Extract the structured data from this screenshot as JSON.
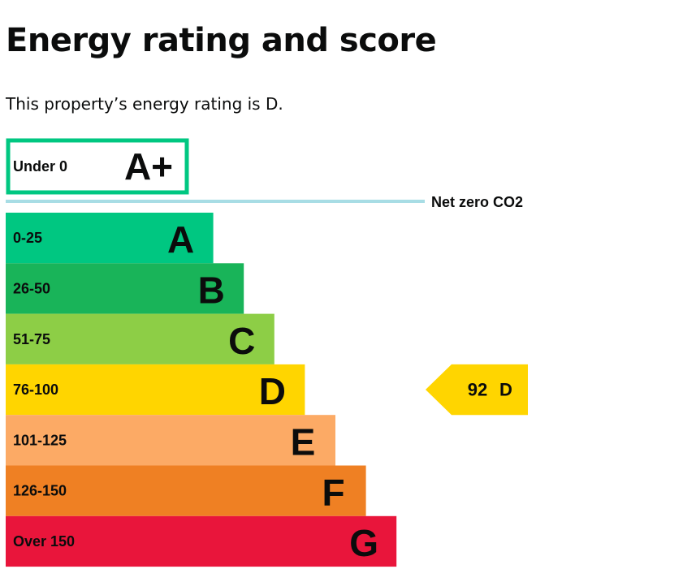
{
  "page": {
    "title": "Energy rating and score",
    "intro_prefix": "This property’s energy rating is ",
    "intro_rating": "D",
    "intro_suffix": "."
  },
  "chart_data": {
    "type": "bar",
    "title": "",
    "xlabel": "",
    "ylabel": "",
    "net_zero_label": "Net zero CO2",
    "target_band": {
      "range": "Under 0",
      "letter": "A+",
      "color": "#00c781"
    },
    "net_zero_line_color": "#a8dde5",
    "bands": [
      {
        "range": "0-25",
        "letter": "A",
        "level": 1,
        "color": "#00c781"
      },
      {
        "range": "26-50",
        "letter": "B",
        "level": 2,
        "color": "#19b459"
      },
      {
        "range": "51-75",
        "letter": "C",
        "level": 3,
        "color": "#8dce46"
      },
      {
        "range": "76-100",
        "letter": "D",
        "level": 4,
        "color": "#ffd500"
      },
      {
        "range": "101-125",
        "letter": "E",
        "level": 5,
        "color": "#fcaa65"
      },
      {
        "range": "126-150",
        "letter": "F",
        "level": 6,
        "color": "#ef8023"
      },
      {
        "range": "Over 150",
        "letter": "G",
        "level": 7,
        "color": "#e9153b"
      }
    ],
    "current": {
      "score": 92,
      "rating": "D",
      "color": "#ffd500"
    }
  }
}
